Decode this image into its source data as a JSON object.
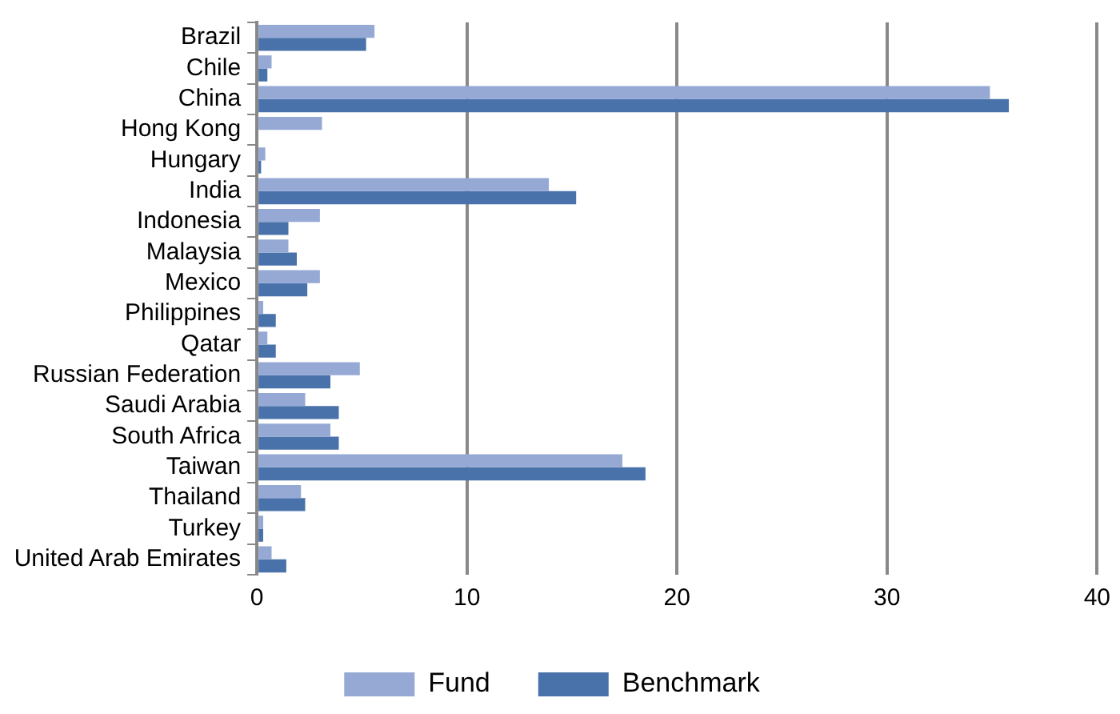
{
  "chart_data": {
    "type": "bar",
    "orientation": "horizontal",
    "categories": [
      "Brazil",
      "Chile",
      "China",
      "Hong Kong",
      "Hungary",
      "India",
      "Indonesia",
      "Malaysia",
      "Mexico",
      "Philippines",
      "Qatar",
      "Russian Federation",
      "Saudi Arabia",
      "South Africa",
      "Taiwan",
      "Thailand",
      "Turkey",
      "United Arab Emirates"
    ],
    "series": [
      {
        "name": "Fund",
        "color": "#95a9d4",
        "values": [
          5.6,
          0.7,
          34.9,
          3.1,
          0.4,
          13.9,
          3.0,
          1.5,
          3.0,
          0.3,
          0.5,
          4.9,
          2.3,
          3.5,
          17.4,
          2.1,
          0.3,
          0.7
        ]
      },
      {
        "name": "Benchmark",
        "color": "#4a72aa",
        "values": [
          5.2,
          0.5,
          35.8,
          0,
          0.2,
          15.2,
          1.5,
          1.9,
          2.4,
          0.9,
          0.9,
          3.5,
          3.9,
          3.9,
          18.5,
          2.3,
          0.3,
          1.4
        ]
      }
    ],
    "xlim": [
      0,
      40
    ],
    "xticks": [
      0,
      10,
      20,
      30,
      40
    ],
    "grid": "x",
    "legend": "bottom"
  }
}
